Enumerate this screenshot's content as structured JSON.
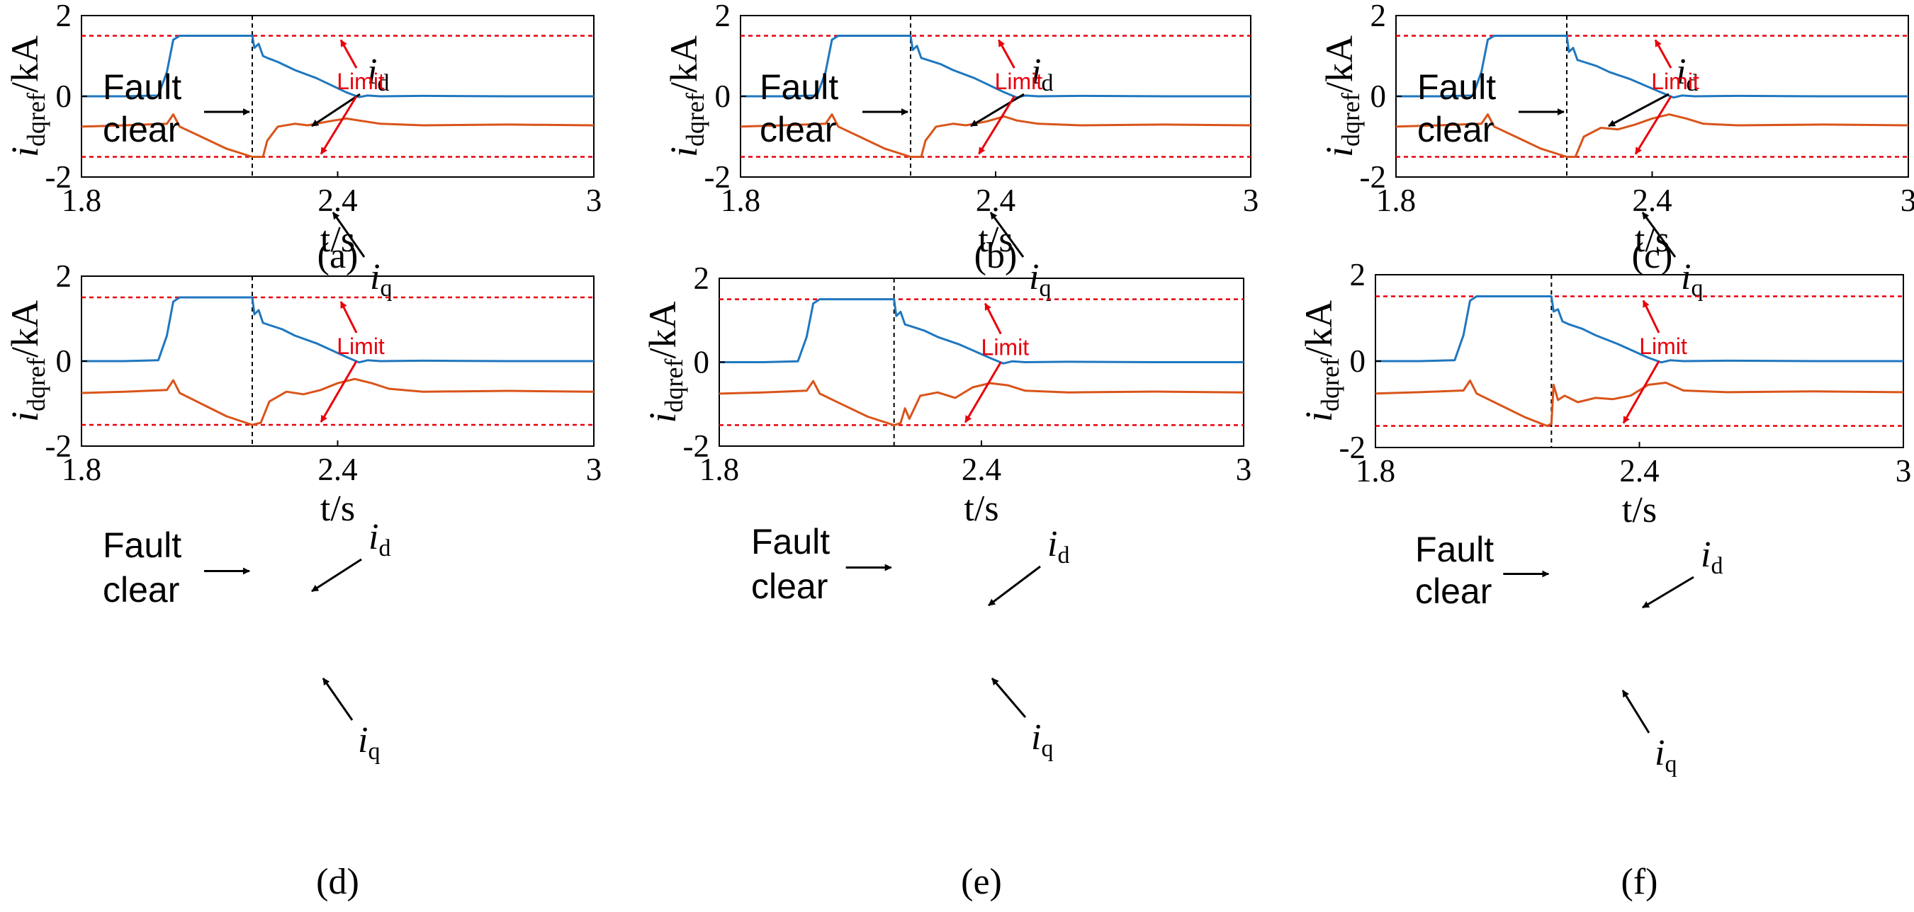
{
  "chart_data": [
    {
      "panel": "a",
      "caption": "(a)",
      "type": "line",
      "xlabel": "t/s",
      "ylabel": "idqref/kA",
      "xlim": [
        1.8,
        3
      ],
      "ylim": [
        -2,
        2
      ],
      "xticks": [
        "1.8",
        "2.4",
        "3"
      ],
      "yticks": [
        "2",
        "0",
        "-2"
      ],
      "limit_upper": 1.5,
      "limit_lower": -1.5,
      "fault_clear_t": 2.2,
      "annotations": {
        "fault": "Fault",
        "clear": "clear",
        "limit": "Limit",
        "id_main": "i",
        "id_sub": "d",
        "iq_main": "i",
        "iq_sub": "q"
      },
      "series": [
        {
          "name": "id",
          "color": "#1f77bf",
          "x": [
            1.8,
            1.9,
            1.98,
            2.0,
            2.015,
            2.03,
            2.1,
            2.2,
            2.205,
            2.215,
            2.225,
            2.235,
            2.26,
            2.3,
            2.35,
            2.42,
            2.45,
            2.47,
            2.5,
            2.6,
            2.8,
            3.0
          ],
          "y": [
            0.0,
            0.0,
            0.02,
            0.6,
            1.4,
            1.5,
            1.5,
            1.5,
            1.2,
            1.3,
            1.0,
            0.95,
            0.85,
            0.65,
            0.45,
            0.1,
            -0.02,
            0.02,
            0.0,
            0.01,
            0.0,
            0.0
          ]
        },
        {
          "name": "iq",
          "color": "#d9541a",
          "x": [
            1.8,
            1.9,
            2.0,
            2.015,
            2.03,
            2.08,
            2.14,
            2.2,
            2.225,
            2.235,
            2.26,
            2.3,
            2.33,
            2.38,
            2.42,
            2.45,
            2.5,
            2.6,
            2.8,
            3.0
          ],
          "y": [
            -0.75,
            -0.72,
            -0.68,
            -0.45,
            -0.75,
            -1.0,
            -1.3,
            -1.5,
            -1.5,
            -1.1,
            -0.75,
            -0.68,
            -0.72,
            -0.62,
            -0.55,
            -0.6,
            -0.68,
            -0.72,
            -0.7,
            -0.72
          ]
        }
      ]
    },
    {
      "panel": "b",
      "caption": "(b)",
      "type": "line",
      "xlabel": "t/s",
      "ylabel": "idqref/kA",
      "xlim": [
        1.8,
        3
      ],
      "ylim": [
        -2,
        2
      ],
      "xticks": [
        "1.8",
        "2.4",
        "3"
      ],
      "yticks": [
        "2",
        "0",
        "-2"
      ],
      "limit_upper": 1.5,
      "limit_lower": -1.5,
      "fault_clear_t": 2.2,
      "annotations": {
        "fault": "Fault",
        "clear": "clear",
        "limit": "Limit",
        "id_main": "i",
        "id_sub": "d",
        "iq_main": "i",
        "iq_sub": "q"
      },
      "series": [
        {
          "name": "id",
          "color": "#1f77bf",
          "x": [
            1.8,
            1.9,
            1.98,
            2.0,
            2.015,
            2.03,
            2.1,
            2.2,
            2.205,
            2.215,
            2.225,
            2.24,
            2.27,
            2.3,
            2.35,
            2.42,
            2.45,
            2.47,
            2.5,
            2.6,
            2.8,
            3.0
          ],
          "y": [
            0.0,
            0.0,
            0.02,
            0.6,
            1.4,
            1.5,
            1.5,
            1.5,
            1.15,
            1.25,
            0.95,
            0.9,
            0.8,
            0.65,
            0.45,
            0.1,
            -0.03,
            0.02,
            0.0,
            0.01,
            0.0,
            0.0
          ]
        },
        {
          "name": "iq",
          "color": "#d9541a",
          "x": [
            1.8,
            1.9,
            2.0,
            2.015,
            2.03,
            2.08,
            2.14,
            2.2,
            2.225,
            2.235,
            2.26,
            2.3,
            2.33,
            2.38,
            2.42,
            2.45,
            2.5,
            2.6,
            2.8,
            3.0
          ],
          "y": [
            -0.75,
            -0.72,
            -0.68,
            -0.45,
            -0.75,
            -1.0,
            -1.3,
            -1.5,
            -1.5,
            -1.1,
            -0.75,
            -0.68,
            -0.72,
            -0.62,
            -0.5,
            -0.6,
            -0.68,
            -0.72,
            -0.7,
            -0.72
          ]
        }
      ]
    },
    {
      "panel": "c",
      "caption": "(c)",
      "type": "line",
      "xlabel": "t/s",
      "ylabel": "idqref/kA",
      "xlim": [
        1.8,
        3
      ],
      "ylim": [
        -2,
        2
      ],
      "xticks": [
        "1.8",
        "2.4",
        "3"
      ],
      "yticks": [
        "2",
        "0",
        "-2"
      ],
      "limit_upper": 1.5,
      "limit_lower": -1.5,
      "fault_clear_t": 2.2,
      "annotations": {
        "fault": "Fault",
        "clear": "clear",
        "limit": "Limit",
        "id_main": "i",
        "id_sub": "d",
        "iq_main": "i",
        "iq_sub": "q"
      },
      "series": [
        {
          "name": "id",
          "color": "#1f77bf",
          "x": [
            1.8,
            1.9,
            1.98,
            2.0,
            2.015,
            2.03,
            2.1,
            2.2,
            2.205,
            2.215,
            2.225,
            2.24,
            2.27,
            2.3,
            2.35,
            2.42,
            2.45,
            2.47,
            2.5,
            2.6,
            2.8,
            3.0
          ],
          "y": [
            0.0,
            0.0,
            0.02,
            0.6,
            1.4,
            1.5,
            1.5,
            1.5,
            1.1,
            1.2,
            0.9,
            0.85,
            0.75,
            0.6,
            0.42,
            0.1,
            -0.03,
            0.02,
            0.0,
            0.01,
            0.0,
            0.0
          ]
        },
        {
          "name": "iq",
          "color": "#d9541a",
          "x": [
            1.8,
            1.9,
            2.0,
            2.015,
            2.03,
            2.08,
            2.14,
            2.2,
            2.22,
            2.24,
            2.28,
            2.32,
            2.36,
            2.4,
            2.44,
            2.48,
            2.52,
            2.6,
            2.8,
            3.0
          ],
          "y": [
            -0.75,
            -0.72,
            -0.68,
            -0.45,
            -0.75,
            -1.0,
            -1.3,
            -1.5,
            -1.5,
            -1.0,
            -0.78,
            -0.82,
            -0.7,
            -0.55,
            -0.45,
            -0.55,
            -0.68,
            -0.72,
            -0.7,
            -0.72
          ]
        }
      ]
    },
    {
      "panel": "d",
      "caption": "(d)",
      "type": "line",
      "xlabel": "t/s",
      "ylabel": "idqref/kA",
      "xlim": [
        1.8,
        3
      ],
      "ylim": [
        -2,
        2
      ],
      "xticks": [
        "1.8",
        "2.4",
        "3"
      ],
      "yticks": [
        "2",
        "0",
        "-2"
      ],
      "limit_upper": 1.5,
      "limit_lower": -1.5,
      "fault_clear_t": 2.2,
      "annotations": {
        "fault": "Fault",
        "clear": "clear",
        "limit": "Limit",
        "id_main": "i",
        "id_sub": "d",
        "iq_main": "i",
        "iq_sub": "q"
      },
      "series": [
        {
          "name": "id",
          "color": "#1f77bf",
          "x": [
            1.8,
            1.9,
            1.98,
            2.0,
            2.015,
            2.03,
            2.1,
            2.2,
            2.205,
            2.215,
            2.225,
            2.24,
            2.27,
            2.3,
            2.35,
            2.42,
            2.45,
            2.47,
            2.5,
            2.6,
            2.8,
            3.0
          ],
          "y": [
            0.0,
            0.0,
            0.02,
            0.6,
            1.4,
            1.5,
            1.5,
            1.5,
            1.1,
            1.2,
            0.9,
            0.85,
            0.75,
            0.6,
            0.42,
            0.1,
            -0.03,
            0.02,
            0.0,
            0.01,
            0.0,
            0.0
          ]
        },
        {
          "name": "iq",
          "color": "#d9541a",
          "x": [
            1.8,
            1.9,
            2.0,
            2.015,
            2.03,
            2.08,
            2.14,
            2.2,
            2.22,
            2.24,
            2.28,
            2.32,
            2.36,
            2.4,
            2.44,
            2.48,
            2.52,
            2.6,
            2.8,
            3.0
          ],
          "y": [
            -0.75,
            -0.72,
            -0.68,
            -0.45,
            -0.75,
            -1.0,
            -1.3,
            -1.5,
            -1.45,
            -0.95,
            -0.72,
            -0.78,
            -0.68,
            -0.52,
            -0.42,
            -0.52,
            -0.65,
            -0.72,
            -0.7,
            -0.72
          ]
        }
      ]
    },
    {
      "panel": "e",
      "caption": "(e)",
      "type": "line",
      "xlabel": "t/s",
      "ylabel": "idqref/kA",
      "xlim": [
        1.8,
        3
      ],
      "ylim": [
        -2,
        2
      ],
      "xticks": [
        "1.8",
        "2.4",
        "3"
      ],
      "yticks": [
        "2",
        "0",
        "-2"
      ],
      "limit_upper": 1.5,
      "limit_lower": -1.5,
      "fault_clear_t": 2.2,
      "annotations": {
        "fault": "Fault",
        "clear": "clear",
        "limit": "Limit",
        "id_main": "i",
        "id_sub": "d",
        "iq_main": "i",
        "iq_sub": "q"
      },
      "series": [
        {
          "name": "id",
          "color": "#1f77bf",
          "x": [
            1.8,
            1.9,
            1.98,
            2.0,
            2.015,
            2.03,
            2.1,
            2.2,
            2.205,
            2.215,
            2.225,
            2.24,
            2.27,
            2.3,
            2.35,
            2.42,
            2.45,
            2.47,
            2.5,
            2.6,
            2.8,
            3.0
          ],
          "y": [
            0.0,
            0.0,
            0.02,
            0.6,
            1.4,
            1.5,
            1.5,
            1.5,
            1.1,
            1.2,
            0.9,
            0.85,
            0.75,
            0.6,
            0.42,
            0.1,
            -0.03,
            0.02,
            0.0,
            0.01,
            0.0,
            0.0
          ]
        },
        {
          "name": "iq",
          "color": "#d9541a",
          "x": [
            1.8,
            1.9,
            2.0,
            2.015,
            2.03,
            2.08,
            2.14,
            2.2,
            2.215,
            2.225,
            2.235,
            2.26,
            2.3,
            2.34,
            2.38,
            2.42,
            2.46,
            2.5,
            2.6,
            2.8,
            3.0
          ],
          "y": [
            -0.75,
            -0.72,
            -0.68,
            -0.45,
            -0.75,
            -1.0,
            -1.3,
            -1.5,
            -1.45,
            -1.1,
            -1.35,
            -0.8,
            -0.72,
            -0.85,
            -0.6,
            -0.5,
            -0.55,
            -0.68,
            -0.72,
            -0.7,
            -0.72
          ]
        }
      ]
    },
    {
      "panel": "f",
      "caption": "(f)",
      "type": "line",
      "xlabel": "t/s",
      "ylabel": "idqref/kA",
      "xlim": [
        1.8,
        3
      ],
      "ylim": [
        -2,
        2
      ],
      "xticks": [
        "1.8",
        "2.4",
        "3"
      ],
      "yticks": [
        "2",
        "0",
        "-2"
      ],
      "limit_upper": 1.5,
      "limit_lower": -1.5,
      "fault_clear_t": 2.2,
      "annotations": {
        "fault": "Fault",
        "clear": "clear",
        "limit": "Limit",
        "id_main": "i",
        "id_sub": "d",
        "iq_main": "i",
        "iq_sub": "q"
      },
      "series": [
        {
          "name": "id",
          "color": "#1f77bf",
          "x": [
            1.8,
            1.9,
            1.98,
            2.0,
            2.015,
            2.03,
            2.1,
            2.2,
            2.205,
            2.215,
            2.225,
            2.24,
            2.27,
            2.3,
            2.35,
            2.42,
            2.45,
            2.47,
            2.5,
            2.6,
            2.8,
            3.0
          ],
          "y": [
            0.0,
            0.0,
            0.02,
            0.6,
            1.4,
            1.5,
            1.5,
            1.5,
            1.15,
            1.2,
            0.92,
            0.85,
            0.75,
            0.6,
            0.4,
            0.08,
            -0.03,
            0.02,
            0.0,
            0.01,
            0.0,
            0.0
          ]
        },
        {
          "name": "iq",
          "color": "#d9541a",
          "x": [
            1.8,
            1.9,
            2.0,
            2.015,
            2.03,
            2.08,
            2.14,
            2.19,
            2.2,
            2.205,
            2.215,
            2.23,
            2.26,
            2.3,
            2.34,
            2.38,
            2.42,
            2.46,
            2.5,
            2.6,
            2.8,
            3.0
          ],
          "y": [
            -0.75,
            -0.72,
            -0.68,
            -0.45,
            -0.75,
            -1.0,
            -1.3,
            -1.5,
            -1.45,
            -0.55,
            -0.9,
            -0.8,
            -0.95,
            -0.85,
            -0.88,
            -0.8,
            -0.55,
            -0.5,
            -0.68,
            -0.72,
            -0.7,
            -0.72
          ]
        }
      ]
    }
  ]
}
